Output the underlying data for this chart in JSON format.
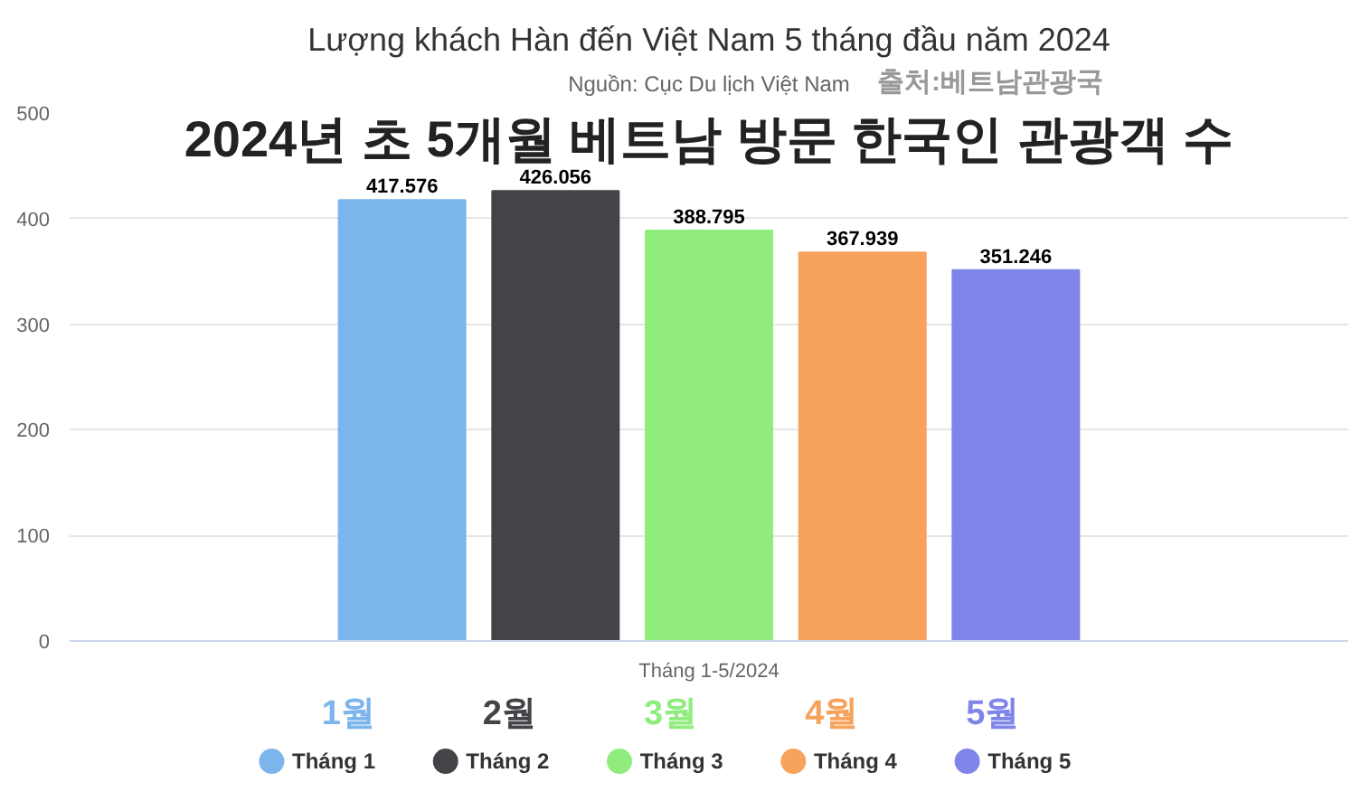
{
  "chart_data": {
    "type": "bar",
    "title": "Lượng khách Hàn đến Việt Nam 5 tháng đầu năm 2024",
    "subtitle": "Nguồn: Cục Du lịch Việt Nam",
    "categories": [
      "Tháng 1-5/2024"
    ],
    "series": [
      {
        "name": "Tháng 1",
        "color": "#7cb5ec",
        "values": [
          417.576
        ]
      },
      {
        "name": "Tháng 2",
        "color": "#434348",
        "values": [
          426.056
        ]
      },
      {
        "name": "Tháng 3",
        "color": "#90ed7d",
        "values": [
          388.795
        ]
      },
      {
        "name": "Tháng 4",
        "color": "#f7a35c",
        "values": [
          367.939
        ]
      },
      {
        "name": "Tháng 5",
        "color": "#8085e9",
        "values": [
          351.246
        ]
      }
    ],
    "ylim": [
      0,
      500
    ],
    "yticks": [
      0,
      100,
      200,
      300,
      400,
      500
    ],
    "grid": "y",
    "legend": "bottom",
    "data_labels": true,
    "annotations": [
      "출처:베트남관광국",
      "2024년 초 5개월 베트남 방문 한국인 관광객 수",
      "1월",
      "2월",
      "3월",
      "4월",
      "5월"
    ]
  }
}
